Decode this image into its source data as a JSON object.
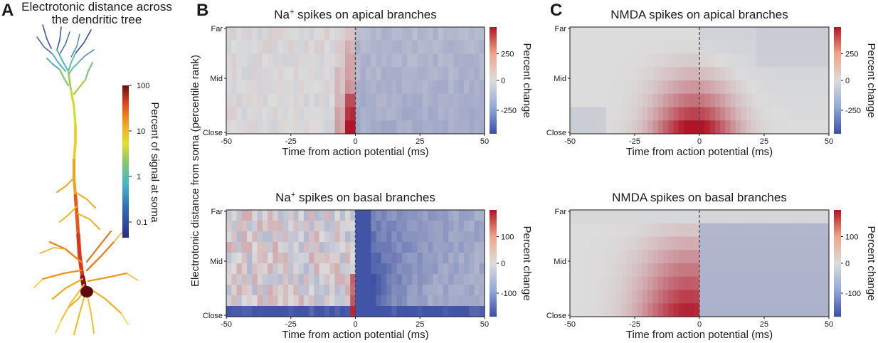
{
  "colors": {
    "blue": "#3a4ea3",
    "white": "#dcdcdc",
    "red": "#b11426",
    "dashed_line": "#444444",
    "tree_gradient": [
      "#2b2a8c",
      "#2f6fb6",
      "#43b7c9",
      "#86c86e",
      "#e3e02a",
      "#f2a21f",
      "#e2471c",
      "#6e0b0b"
    ]
  },
  "panel_a": {
    "label": "A",
    "title_line1": "Electrotonic distance across",
    "title_line2": "the dendritic tree",
    "colorbar_label": "Percent of signal at soma",
    "colorbar_ticks": [
      "100",
      "10",
      "1",
      "0.1"
    ]
  },
  "panel_b": {
    "label": "B"
  },
  "panel_c": {
    "label": "C"
  },
  "shared_ylabel": "Electrotonic distance  from soma (percentile rank)",
  "chart_data": [
    {
      "type": "heatmap",
      "id": "na-apical",
      "title": "Na",
      "title_sup": "+",
      "title_rest": " spikes on apical branches",
      "xlabel": "Time from action potential (ms)",
      "xlim": [
        -50,
        50
      ],
      "x_ticks": [
        "-50",
        "-25",
        "0",
        "25",
        "50"
      ],
      "y_ticks": [
        "Far",
        "Mid",
        "Close"
      ],
      "colorbar_label": "Percent change",
      "colorbar_ticks": [
        "250",
        "0",
        "-250"
      ],
      "clim": [
        -450,
        450
      ],
      "event_line_x": 0,
      "n_rows": 8,
      "n_cols": 50,
      "pattern": "na_apical"
    },
    {
      "type": "heatmap",
      "id": "nmda-apical",
      "title": "NMDA spikes on apical branches",
      "xlabel": "Time from action potential (ms)",
      "xlim": [
        -50,
        50
      ],
      "x_ticks": [
        "-50",
        "-25",
        "0",
        "25",
        "50"
      ],
      "y_ticks": [
        "Far",
        "Mid",
        "Close"
      ],
      "colorbar_label": "Percent change",
      "colorbar_ticks": [
        "250",
        "0",
        "-250"
      ],
      "clim": [
        -450,
        450
      ],
      "event_line_x": 0,
      "n_rows": 8,
      "n_cols": 50,
      "pattern": "nmda_apical"
    },
    {
      "type": "heatmap",
      "id": "na-basal",
      "title": "Na",
      "title_sup": "+",
      "title_rest": " spikes on basal branches",
      "xlabel": "Time from action potential (ms)",
      "xlim": [
        -50,
        50
      ],
      "x_ticks": [
        "-50",
        "-25",
        "0",
        "25",
        "50"
      ],
      "y_ticks": [
        "Far",
        "Mid",
        "Close"
      ],
      "colorbar_label": "Percent change",
      "colorbar_ticks": [
        "100",
        "0",
        "-100"
      ],
      "clim": [
        -100,
        100
      ],
      "event_line_x": 0,
      "n_rows": 10,
      "n_cols": 50,
      "pattern": "na_basal"
    },
    {
      "type": "heatmap",
      "id": "nmda-basal",
      "title": "NMDA spikes on basal branches",
      "xlabel": "Time from action potential (ms)",
      "xlim": [
        -50,
        50
      ],
      "x_ticks": [
        "-50",
        "-25",
        "0",
        "25",
        "50"
      ],
      "y_ticks": [
        "Far",
        "Mid",
        "Close"
      ],
      "colorbar_label": "Percent change",
      "colorbar_ticks": [
        "100",
        "0",
        "-100"
      ],
      "clim": [
        -150,
        150
      ],
      "event_line_x": 0,
      "n_rows": 8,
      "n_cols": 50,
      "pattern": "nmda_basal"
    }
  ]
}
